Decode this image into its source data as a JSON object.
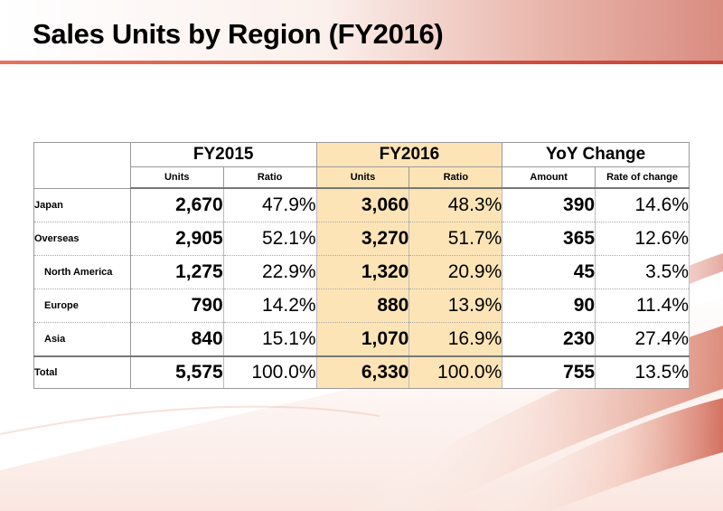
{
  "title": "Sales Units by Region (FY2016)",
  "colors": {
    "fy2016_highlight": "#fde4b6",
    "title_line": "#d4523e"
  },
  "table": {
    "group_headers": [
      "FY2015",
      "FY2016",
      "YoY Change"
    ],
    "sub_headers": [
      "Units",
      "Ratio",
      "Units",
      "Ratio",
      "Amount",
      "Rate of change"
    ],
    "rows": [
      {
        "label": "Japan",
        "fy2015_units": "2,670",
        "fy2015_ratio": "47.9%",
        "fy2016_units": "3,060",
        "fy2016_ratio": "48.3%",
        "yoy_amount": "390",
        "yoy_rate": "14.6%"
      },
      {
        "label": "Overseas",
        "fy2015_units": "2,905",
        "fy2015_ratio": "52.1%",
        "fy2016_units": "3,270",
        "fy2016_ratio": "51.7%",
        "yoy_amount": "365",
        "yoy_rate": "12.6%"
      },
      {
        "label": "North America",
        "fy2015_units": "1,275",
        "fy2015_ratio": "22.9%",
        "fy2016_units": "1,320",
        "fy2016_ratio": "20.9%",
        "yoy_amount": "45",
        "yoy_rate": "3.5%"
      },
      {
        "label": "Europe",
        "fy2015_units": "790",
        "fy2015_ratio": "14.2%",
        "fy2016_units": "880",
        "fy2016_ratio": "13.9%",
        "yoy_amount": "90",
        "yoy_rate": "11.4%"
      },
      {
        "label": "Asia",
        "fy2015_units": "840",
        "fy2015_ratio": "15.1%",
        "fy2016_units": "1,070",
        "fy2016_ratio": "16.9%",
        "yoy_amount": "230",
        "yoy_rate": "27.4%"
      },
      {
        "label": "Total",
        "fy2015_units": "5,575",
        "fy2015_ratio": "100.0%",
        "fy2016_units": "6,330",
        "fy2016_ratio": "100.0%",
        "yoy_amount": "755",
        "yoy_rate": "13.5%"
      }
    ]
  }
}
